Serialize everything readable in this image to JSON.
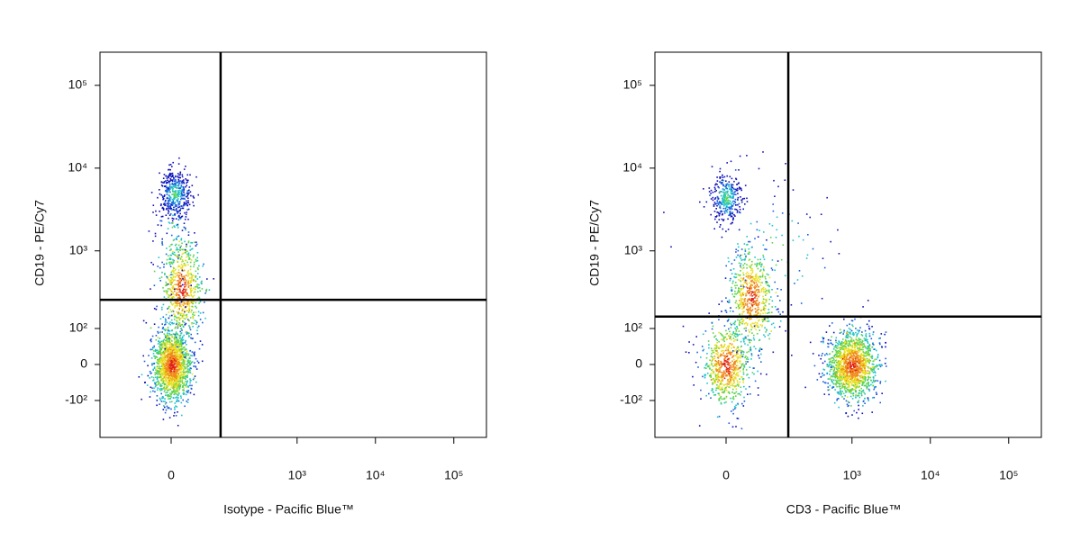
{
  "chart_data": [
    {
      "type": "scatter",
      "scale": "biexponential",
      "x_label": "Isotype - Pacific Blue™",
      "y_label": "CD19 - PE/Cy7",
      "xlim": [
        -200,
        260000
      ],
      "ylim": [
        -330,
        250000
      ],
      "xticks": [
        0,
        {
          "value": 1000,
          "label": "10³"
        },
        {
          "value": 10000,
          "label": "10⁴"
        },
        {
          "value": 100000,
          "label": "10⁵"
        }
      ],
      "yticks": [
        {
          "value": -100,
          "label": "-10²"
        },
        0,
        {
          "value": 100,
          "label": "10²"
        },
        {
          "value": 1000,
          "label": "10³"
        },
        {
          "value": 10000,
          "label": "10⁴"
        },
        {
          "value": 100000,
          "label": "10⁵"
        }
      ],
      "gates": {
        "x": 100,
        "y": 250
      },
      "populations": [
        {
          "x": 0,
          "y": 0,
          "n": 1600,
          "sd_x": 0.12,
          "sd_y": 0.22
        },
        {
          "x": 5,
          "y": 5000,
          "n": 380,
          "sd_x": 0.1,
          "sd_y": 0.14
        },
        {
          "x": 15,
          "y": 350,
          "n": 650,
          "sd_x": 0.13,
          "sd_y": 0.3
        },
        {
          "x": 0,
          "y": 1500,
          "n": 90,
          "sd_x": 0.12,
          "sd_y": 0.45
        }
      ]
    },
    {
      "type": "scatter",
      "scale": "biexponential",
      "x_label": "CD3 - Pacific Blue™",
      "y_label": "CD19 - PE/Cy7",
      "xlim": [
        -200,
        260000
      ],
      "ylim": [
        -330,
        250000
      ],
      "xticks": [
        0,
        {
          "value": 1000,
          "label": "10³"
        },
        {
          "value": 10000,
          "label": "10⁴"
        },
        {
          "value": 100000,
          "label": "10⁵"
        }
      ],
      "yticks": [
        {
          "value": -100,
          "label": "-10²"
        },
        0,
        {
          "value": 100,
          "label": "10²"
        },
        {
          "value": 1000,
          "label": "10³"
        },
        {
          "value": 10000,
          "label": "10⁴"
        },
        {
          "value": 100000,
          "label": "10⁵"
        }
      ],
      "gates": {
        "x": 150,
        "y": 150
      },
      "populations": [
        {
          "x": 1000,
          "y": 0,
          "n": 1500,
          "sd_x": 0.16,
          "sd_y": 0.2
        },
        {
          "x": 0,
          "y": 0,
          "n": 700,
          "sd_x": 0.15,
          "sd_y": 0.25
        },
        {
          "x": 40,
          "y": 260,
          "n": 650,
          "sd_x": 0.14,
          "sd_y": 0.3
        },
        {
          "x": 0,
          "y": 4500,
          "n": 330,
          "sd_x": 0.1,
          "sd_y": 0.16
        },
        {
          "x": 100,
          "y": 1000,
          "n": 90,
          "sd_x": 0.5,
          "sd_y": 0.5
        }
      ]
    }
  ]
}
